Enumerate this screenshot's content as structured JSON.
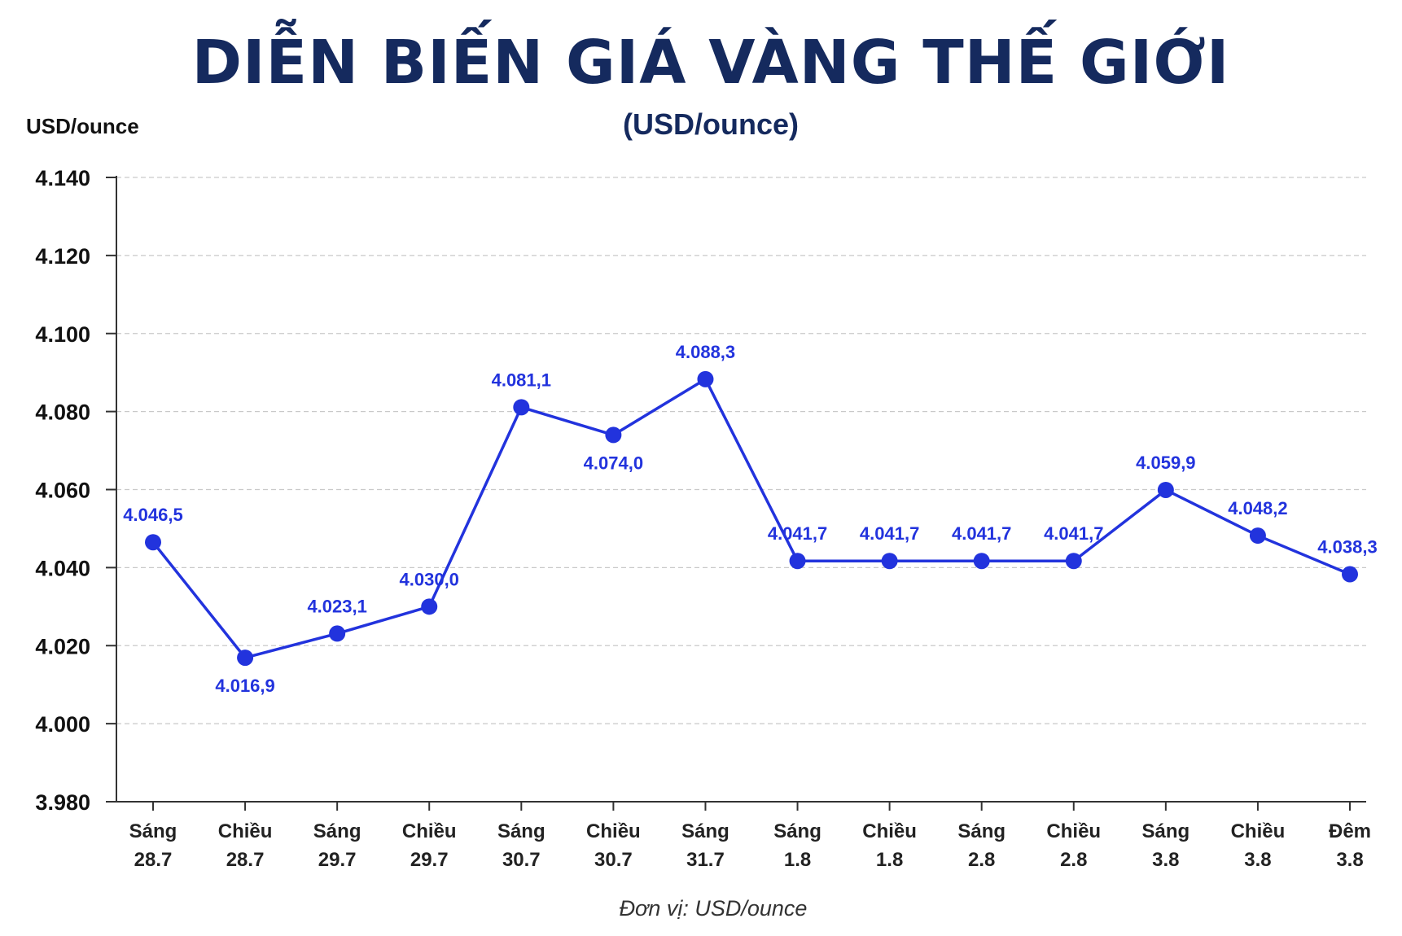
{
  "chart_data": {
    "type": "line",
    "title": "DIỄN BIẾN GIÁ VÀNG THẾ GIỚI",
    "subtitle": "(USD/ounce)",
    "ylabel": "USD/ounce",
    "footnote": "Đơn vị: USD/ounce",
    "ylim": [
      3980,
      4140
    ],
    "y_ticks": [
      3980,
      4000,
      4020,
      4040,
      4060,
      4080,
      4100,
      4120,
      4140
    ],
    "y_tick_labels": [
      "3.980",
      "4.000",
      "4.020",
      "4.040",
      "4.060",
      "4.080",
      "4.100",
      "4.120",
      "4.140"
    ],
    "grid": true,
    "line_color": "#2233dd",
    "label_color": "#2233dd",
    "categories": [
      [
        "Sáng",
        "28.7"
      ],
      [
        "Chiều",
        "28.7"
      ],
      [
        "Sáng",
        "29.7"
      ],
      [
        "Chiều",
        "29.7"
      ],
      [
        "Sáng",
        "30.7"
      ],
      [
        "Chiều",
        "30.7"
      ],
      [
        "Sáng",
        "31.7"
      ],
      [
        "Sáng",
        "1.8"
      ],
      [
        "Chiều",
        "1.8"
      ],
      [
        "Sáng",
        "2.8"
      ],
      [
        "Chiều",
        "2.8"
      ],
      [
        "Sáng",
        "3.8"
      ],
      [
        "Chiều",
        "3.8"
      ],
      [
        "Đêm",
        "3.8"
      ]
    ],
    "series": [
      {
        "values": [
          4046.5,
          4016.9,
          4023.1,
          4030.0,
          4081.1,
          4074.0,
          4088.3,
          4041.7,
          4041.7,
          4041.7,
          4041.7,
          4059.9,
          4048.2,
          4038.3
        ],
        "labels": [
          "4.046,5",
          "4.016,9",
          "4.023,1",
          "4.030,0",
          "4.081,1",
          "4.074,0",
          "4.088,3",
          "4.041,7",
          "4.041,7",
          "4.041,7",
          "4.041,7",
          "4.059,9",
          "4.048,2",
          "4.038,3"
        ]
      }
    ]
  }
}
